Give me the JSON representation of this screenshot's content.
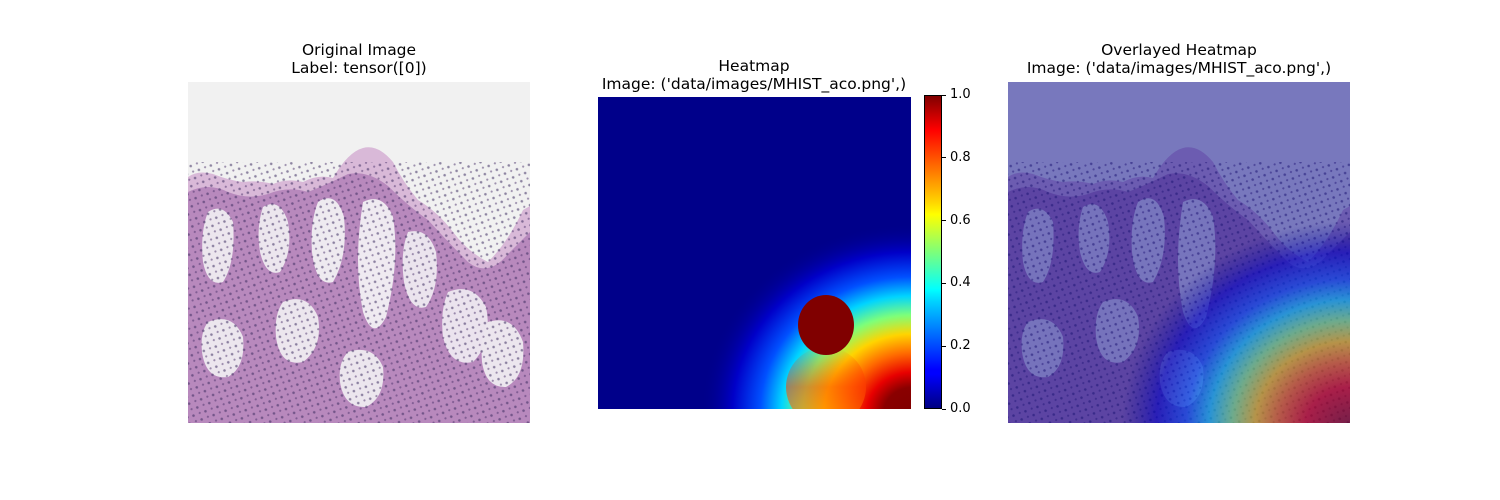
{
  "chart_data": [
    {
      "type": "heatmap",
      "panel": "original",
      "title": "Original Image",
      "subtitle": "Label: tensor([0])",
      "content": "histology-image"
    },
    {
      "type": "heatmap",
      "panel": "heatmap",
      "title": "Heatmap",
      "subtitle": "Image: ('data/images/MHIST_aco.png',)",
      "colormap": "jet",
      "colorbar": {
        "range": [
          0.0,
          1.0
        ],
        "ticks": [
          "0.0",
          "0.2",
          "0.4",
          "0.6",
          "0.8",
          "1.0"
        ],
        "tick_values": [
          0.0,
          0.2,
          0.4,
          0.6,
          0.8,
          1.0
        ]
      },
      "peak": {
        "x": 0.73,
        "y": 0.75,
        "value": 1.0
      }
    },
    {
      "type": "heatmap",
      "panel": "overlay",
      "title": "Overlayed Heatmap",
      "subtitle": "Image: ('data/images/MHIST_aco.png',)",
      "content": "histology-image-with-heatmap-overlay"
    }
  ],
  "colors": {
    "jet_low": "#00007f",
    "jet_high": "#7f0000",
    "tissue": "#8a5a9e",
    "background": "#f1f1f1"
  }
}
